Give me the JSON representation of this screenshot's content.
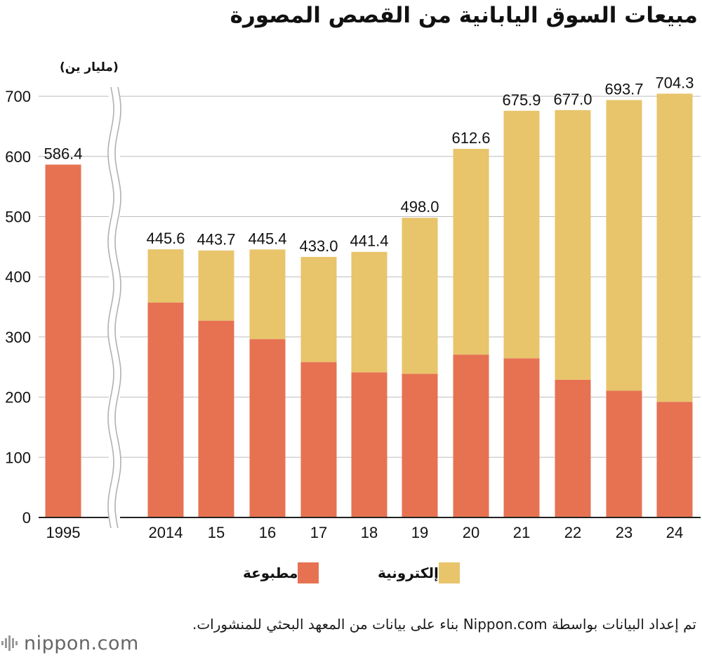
{
  "title": "مبيعات السوق اليابانية من القصص المصورة",
  "colors": {
    "printed": "#E67252",
    "digital": "#E8C46B",
    "axis": "#222222",
    "grid": "#bdbdbd"
  },
  "chart_data": {
    "type": "bar",
    "stacked": true,
    "unit_label": "(مليار ين)",
    "categories": [
      "1995",
      "2014",
      "15",
      "16",
      "17",
      "18",
      "19",
      "20",
      "21",
      "22",
      "23",
      "24"
    ],
    "series": [
      {
        "name": "مطبوعة",
        "color_key": "printed",
        "values": [
          586.4,
          357.1,
          327.1,
          296.3,
          258.3,
          241.2,
          238.7,
          270.6,
          264.5,
          228.9,
          210.6,
          192.2
        ]
      },
      {
        "name": "إلكترونية",
        "color_key": "digital",
        "values": [
          0,
          88.5,
          116.6,
          149.1,
          174.7,
          200.2,
          259.3,
          342.0,
          411.4,
          448.1,
          483.1,
          512.1
        ]
      }
    ],
    "totals": [
      "586.4",
      "445.6",
      "443.7",
      "445.4",
      "433.0",
      "441.4",
      "498.0",
      "612.6",
      "675.9",
      "677.0",
      "693.7",
      "704.3"
    ],
    "yticks": [
      "0",
      "100",
      "200",
      "300",
      "400",
      "500",
      "600",
      "700"
    ],
    "ylim": [
      0,
      700
    ],
    "grid": true,
    "axis_break_after": "1995"
  },
  "legend": {
    "printed": "مطبوعة",
    "digital": "إلكترونية"
  },
  "source": "تم إعداد البيانات بواسطة Nippon.com بناء على بيانات من المعهد البحثي للمنشورات.",
  "logo": {
    "text": "nippon.com"
  }
}
